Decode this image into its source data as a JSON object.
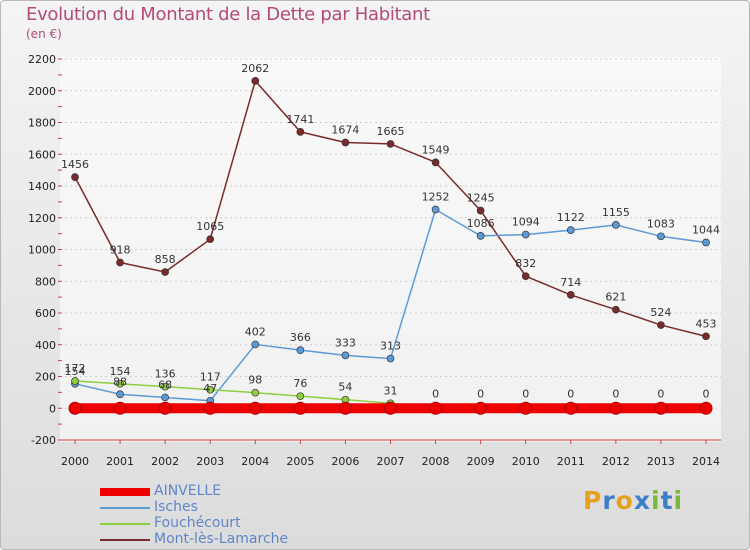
{
  "header": {
    "title": "Evolution du Montant de la Dette par Habitant",
    "subtitle": "(en €)"
  },
  "brand": {
    "letters": [
      "P",
      "r",
      "o",
      "x",
      "i",
      "t",
      "i"
    ],
    "colors": [
      "#e8a020",
      "#3d7ec8",
      "#e8a020",
      "#3d7ec8",
      "#7ab83a",
      "#3d7ec8",
      "#7ab83a"
    ]
  },
  "chart_data": {
    "type": "line",
    "title": "Evolution du Montant de la Dette par Habitant",
    "subtitle": "(en €)",
    "x": [
      "2000",
      "2001",
      "2002",
      "2003",
      "2004",
      "2005",
      "2006",
      "2007",
      "2008",
      "2009",
      "2010",
      "2011",
      "2012",
      "2013",
      "2014"
    ],
    "ylim": [
      -200,
      2200
    ],
    "yticks": [
      -200,
      0,
      200,
      400,
      600,
      800,
      1000,
      1200,
      1400,
      1600,
      1800,
      2000,
      2200
    ],
    "grid": true,
    "legend_position": "bottom-left",
    "series": [
      {
        "name": "AINVELLE",
        "color": "#ee0000",
        "values": [
          0,
          0,
          0,
          0,
          0,
          0,
          0,
          0,
          0,
          0,
          0,
          0,
          0,
          0,
          0
        ],
        "labels": [
          "",
          "",
          "",
          "",
          "",
          "",
          "",
          "",
          "",
          "",
          "",
          "",
          "",
          "",
          ""
        ]
      },
      {
        "name": "Isches",
        "color": "#5b9bd5",
        "values": [
          154,
          88,
          68,
          47,
          402,
          366,
          333,
          313,
          1252,
          1086,
          1094,
          1122,
          1155,
          1083,
          1044
        ],
        "labels": [
          "154",
          "88",
          "68",
          "47",
          "402",
          "366",
          "333",
          "313",
          "1252",
          "1086",
          "1094",
          "1122",
          "1155",
          "1083",
          "1044"
        ]
      },
      {
        "name": "Fouchécourt",
        "color": "#8fce3f",
        "values": [
          172,
          154,
          136,
          117,
          98,
          76,
          54,
          31,
          0,
          0,
          0,
          0,
          0,
          0,
          0
        ],
        "labels": [
          "172",
          "154",
          "136",
          "117",
          "98",
          "76",
          "54",
          "31",
          "0",
          "0",
          "0",
          "0",
          "0",
          "0",
          "0"
        ]
      },
      {
        "name": "Mont-lès-Lamarche",
        "color": "#7a2a2a",
        "values": [
          1456,
          918,
          858,
          1065,
          2062,
          1741,
          1674,
          1665,
          1549,
          1245,
          832,
          714,
          621,
          524,
          453
        ],
        "labels": [
          "1456",
          "918",
          "858",
          "1065",
          "2062",
          "1741",
          "1674",
          "1665",
          "1549",
          "1245",
          "832",
          "714",
          "621",
          "524",
          "453"
        ]
      }
    ]
  }
}
